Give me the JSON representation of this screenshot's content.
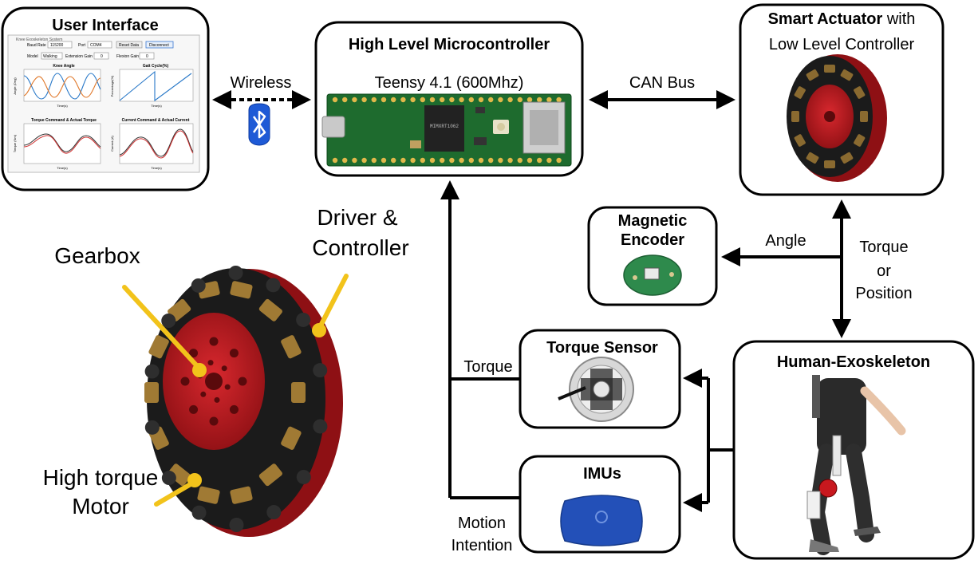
{
  "ui": {
    "title": "User Interface",
    "window_title": "Knee Exoskeleton System",
    "controls": {
      "baud_label": "Baud Rate",
      "baud_value": "115200",
      "port_label": "Port",
      "port_value": "COM4",
      "reset_label": "Reset Data",
      "disconnect_label": "Disconnect",
      "model_label": "Model",
      "model_value": "Walking",
      "ext_gain_label": "Extension Gain",
      "ext_gain_value": "0",
      "flex_gain_label": "Flexion Gain",
      "flex_gain_value": "0"
    },
    "plots": {
      "knee_title": "Knee Angle",
      "knee_ylabel": "Angle (Deg)",
      "gait_title": "Gait Cycle(%)",
      "gait_ylabel": "Percentage(%)",
      "torque_title": "Torque Command & Actual Torque",
      "torque_ylabel": "Torque (Nm)",
      "current_title": "Current Command & Actual Current",
      "current_ylabel": "Current (A)",
      "xlabel": "Time(s)"
    }
  },
  "mcu": {
    "title": "High Level Microcontroller",
    "subtitle": "Teensy 4.1 (600Mhz)"
  },
  "actuator": {
    "title_bold": "Smart Actuator",
    "title_rest": " with",
    "subtitle": "Low Level Controller"
  },
  "encoder": {
    "line1": "Magnetic",
    "line2": "Encoder"
  },
  "torque_sensor": {
    "title": "Torque Sensor"
  },
  "imus": {
    "title": "IMUs"
  },
  "exo": {
    "title": "Human-Exoskeleton"
  },
  "links": {
    "wireless": "Wireless",
    "can_bus": "CAN Bus",
    "angle": "Angle",
    "torque_or_position": [
      "Torque",
      "or",
      "Position"
    ],
    "torque": "Torque",
    "motion_intention": [
      "Motion",
      "Intention"
    ]
  },
  "motor_labels": {
    "gearbox": "Gearbox",
    "driver": [
      "Driver &",
      "Controller"
    ],
    "motor": [
      "High torque",
      "Motor"
    ]
  },
  "colors": {
    "actuator_red": "#c8181e",
    "actuator_black": "#1b1b1b",
    "pcb_green": "#1e6b2e",
    "pointer_yellow": "#f2c31b",
    "bluetooth_blue": "#1e5ad6",
    "imu_blue": "#2350b8"
  }
}
